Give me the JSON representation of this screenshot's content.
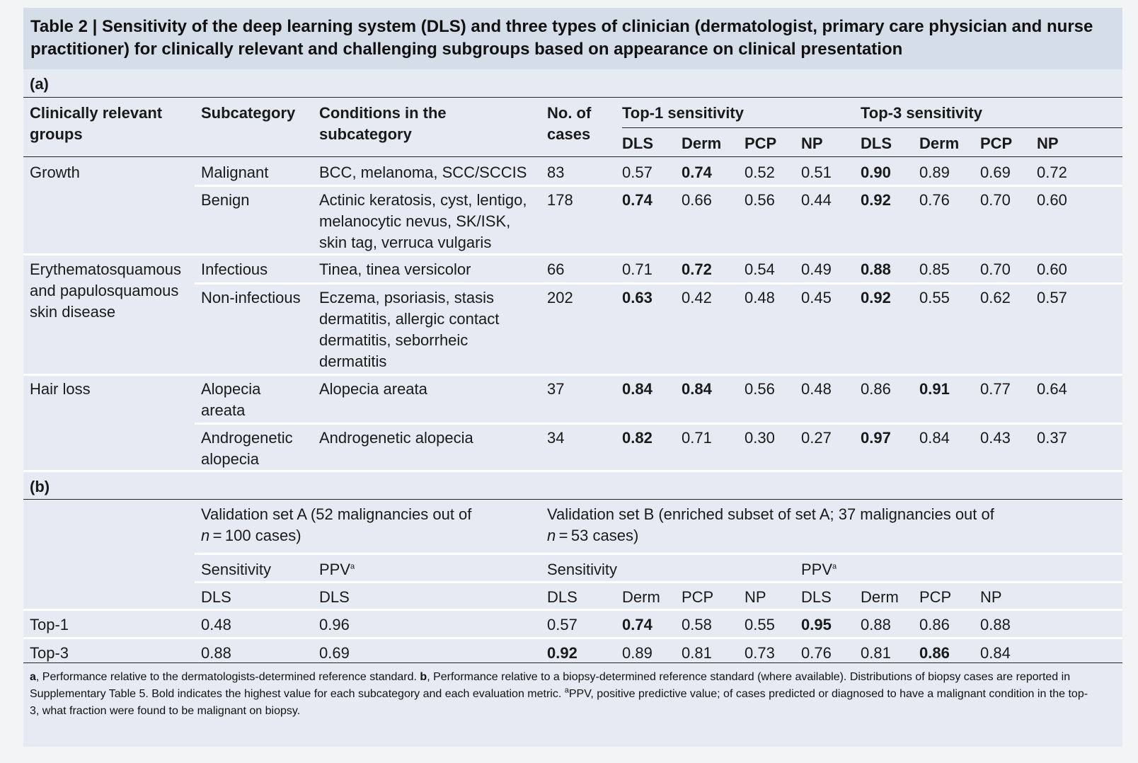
{
  "title": {
    "label": "Table 2 |",
    "text": "Sensitivity of the deep learning system (DLS) and three types of clinician (dermatologist, primary care physician and nurse practitioner) for clinically relevant and challenging subgroups based on appearance on clinical presentation"
  },
  "part_a": {
    "label": "(a)",
    "headers": {
      "group": [
        "Clinically relevant",
        "groups"
      ],
      "subcategory": "Subcategory",
      "conditions": [
        "Conditions in the",
        "subcategory"
      ],
      "cases": [
        "No. of",
        "cases"
      ],
      "top1": "Top-1 sensitivity",
      "top3": "Top-3 sensitivity",
      "sub": [
        "DLS",
        "Derm",
        "PCP",
        "NP",
        "DLS",
        "Derm",
        "PCP",
        "NP"
      ]
    },
    "groups": [
      {
        "name": [
          "Growth"
        ]
      },
      {
        "name": [
          "Erythematosquamous",
          "and papulosquamous",
          "skin disease"
        ]
      },
      {
        "name": [
          "Hair loss"
        ]
      }
    ],
    "rows": [
      {
        "sub": [
          "Malignant"
        ],
        "cond": [
          "BCC, melanoma, SCC/SCCIS"
        ],
        "n": "83",
        "vals": [
          "0.57",
          "0.74",
          "0.52",
          "0.51",
          "0.90",
          "0.89",
          "0.69",
          "0.72"
        ]
      },
      {
        "sub": [
          "Benign"
        ],
        "cond": [
          "Actinic keratosis, cyst, lentigo,",
          "melanocytic nevus, SK/ISK,",
          "skin tag, verruca vulgaris"
        ],
        "n": "178",
        "vals": [
          "0.74",
          "0.66",
          "0.56",
          "0.44",
          "0.92",
          "0.76",
          "0.70",
          "0.60"
        ]
      },
      {
        "sub": [
          "Infectious"
        ],
        "cond": [
          "Tinea, tinea versicolor"
        ],
        "n": "66",
        "vals": [
          "0.71",
          "0.72",
          "0.54",
          "0.49",
          "0.88",
          "0.85",
          "0.70",
          "0.60"
        ]
      },
      {
        "sub": [
          "Non-infectious"
        ],
        "cond": [
          "Eczema, psoriasis, stasis",
          "dermatitis, allergic contact",
          "dermatitis, seborrheic",
          "dermatitis"
        ],
        "n": "202",
        "vals": [
          "0.63",
          "0.42",
          "0.48",
          "0.45",
          "0.92",
          "0.55",
          "0.62",
          "0.57"
        ]
      },
      {
        "sub": [
          "Alopecia",
          "areata"
        ],
        "cond": [
          "Alopecia areata"
        ],
        "n": "37",
        "vals": [
          "0.84",
          "0.84",
          "0.56",
          "0.48",
          "0.86",
          "0.91",
          "0.77",
          "0.64"
        ]
      },
      {
        "sub": [
          "Androgenetic",
          "alopecia"
        ],
        "cond": [
          "Androgenetic alopecia"
        ],
        "n": "34",
        "vals": [
          "0.82",
          "0.71",
          "0.30",
          "0.27",
          "0.97",
          "0.84",
          "0.43",
          "0.37"
        ]
      }
    ]
  },
  "part_b": {
    "label": "(b)",
    "set_a": [
      "Validation set A (52 malignancies out of",
      "n = 100 cases)"
    ],
    "set_b": [
      "Validation set B (enriched subset of set A; 37 malignancies out of",
      "n = 53 cases)"
    ],
    "sensitivity": "Sensitivity",
    "ppv": "PPV",
    "ppv_sup": "a",
    "sub_a": [
      "DLS",
      "DLS"
    ],
    "sub_b": [
      "DLS",
      "Derm",
      "PCP",
      "NP",
      "DLS",
      "Derm",
      "PCP",
      "NP"
    ],
    "rows": [
      {
        "label": "Top-1",
        "a": [
          "0.48",
          "0.96"
        ],
        "b": [
          "0.57",
          "0.74",
          "0.58",
          "0.55",
          "0.95",
          "0.88",
          "0.86",
          "0.88"
        ]
      },
      {
        "label": "Top-3",
        "a": [
          "0.88",
          "0.69"
        ],
        "b": [
          "0.92",
          "0.89",
          "0.81",
          "0.73",
          "0.76",
          "0.81",
          "0.86",
          "0.84"
        ]
      }
    ]
  },
  "footnote": {
    "a_label": "a",
    "a_text": ", Performance relative to the dermatologists-determined reference standard. ",
    "b_label": "b",
    "b_text": ", Performance relative to a biopsy-determined reference standard (where available). Distributions of biopsy cases are reported in Supplementary Table 5. Bold indicates the highest value for each subcategory and each evaluation metric. ",
    "sup": "a",
    "ppv_text": "PPV, positive predictive value; of cases predicted or diagnosed to have a malignant condition in the top-3, what fraction were found to be malignant on biopsy."
  }
}
